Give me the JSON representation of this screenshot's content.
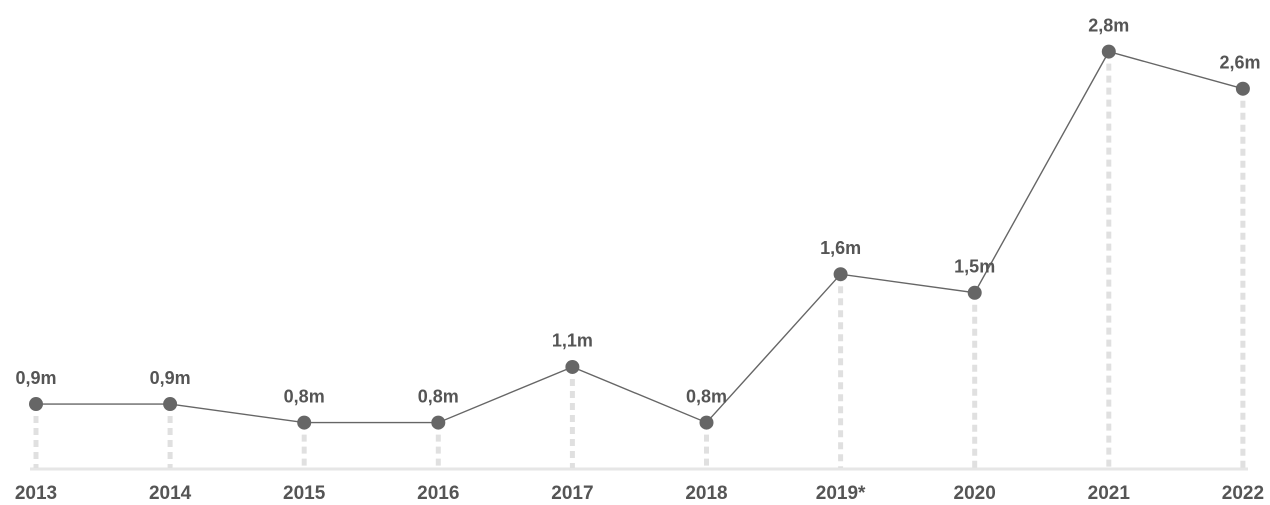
{
  "chart_data": {
    "type": "line",
    "categories": [
      "2013",
      "2014",
      "2015",
      "2016",
      "2017",
      "2018",
      "2019*",
      "2020",
      "2021",
      "2022"
    ],
    "values": [
      0.9,
      0.9,
      0.8,
      0.8,
      1.1,
      0.8,
      1.6,
      1.5,
      2.8,
      2.6
    ],
    "value_labels": [
      "0,9m",
      "0,9m",
      "0,8m",
      "0,8m",
      "1,1m",
      "0,8m",
      "1,6m",
      "1,5m",
      "2,8m",
      "2,6m"
    ],
    "color": "#666666"
  }
}
